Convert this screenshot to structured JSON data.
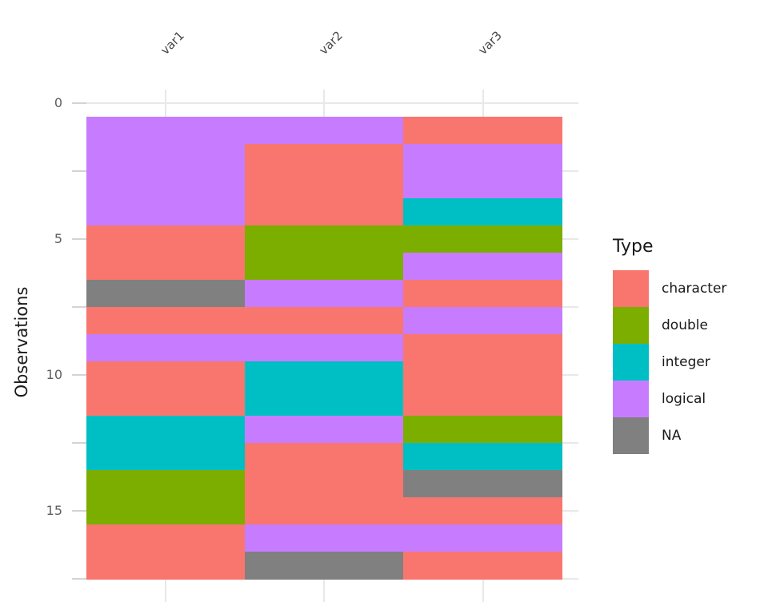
{
  "chart_data": {
    "type": "heatmap",
    "title": "",
    "xlabel": "",
    "ylabel": "Observations",
    "legend_title": "Type",
    "legend_position": "right",
    "columns": [
      "var1",
      "var2",
      "var3"
    ],
    "y_axis": {
      "tick_labels": [
        "0",
        "5",
        "10",
        "15"
      ],
      "tick_values": [
        0,
        5,
        10,
        15
      ],
      "range": [
        0.5,
        17.5
      ],
      "direction": "reversed (0 at top)"
    },
    "n_observations": 17,
    "rows": [
      [
        "logical",
        "logical",
        "character"
      ],
      [
        "logical",
        "character",
        "logical"
      ],
      [
        "logical",
        "character",
        "logical"
      ],
      [
        "logical",
        "character",
        "integer"
      ],
      [
        "character",
        "double",
        "double"
      ],
      [
        "character",
        "double",
        "logical"
      ],
      [
        "NA",
        "logical",
        "character"
      ],
      [
        "character",
        "character",
        "logical"
      ],
      [
        "logical",
        "logical",
        "character"
      ],
      [
        "character",
        "integer",
        "character"
      ],
      [
        "character",
        "integer",
        "character"
      ],
      [
        "integer",
        "logical",
        "double"
      ],
      [
        "integer",
        "character",
        "integer"
      ],
      [
        "double",
        "character",
        "NA"
      ],
      [
        "double",
        "character",
        "character"
      ],
      [
        "character",
        "logical",
        "logical"
      ],
      [
        "character",
        "NA",
        "character"
      ]
    ],
    "legend": {
      "items": [
        {
          "label": "character",
          "color": "#F8766D"
        },
        {
          "label": "double",
          "color": "#7CAE00"
        },
        {
          "label": "integer",
          "color": "#00BFC4"
        },
        {
          "label": "logical",
          "color": "#C77CFF"
        },
        {
          "label": "NA",
          "color": "#808080"
        }
      ]
    },
    "grid": true,
    "grid_color": "#E8E8E8",
    "tick_color": "#D4D4D4",
    "background_color": "#FFFFFF"
  }
}
